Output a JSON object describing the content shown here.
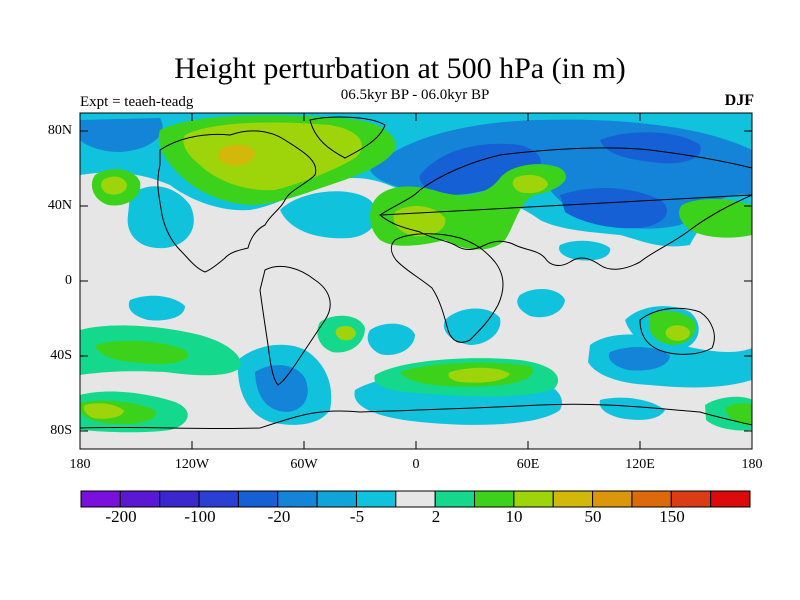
{
  "title": "Height perturbation at 500 hPa (in m)",
  "subtitle": "06.5kyr BP - 06.0kyr BP",
  "experiment": "Expt = teaeh-teadg",
  "season": "DJF",
  "map": {
    "projection": "cylindrical equidistant",
    "lon_range": [
      -180,
      180
    ],
    "lat_range": [
      -90,
      90
    ],
    "lat_ticks": [
      "80N",
      "40N",
      "0",
      "40S",
      "80S"
    ],
    "lon_ticks": [
      "180",
      "120W",
      "60W",
      "0",
      "60E",
      "120E",
      "180"
    ]
  },
  "colorbar": {
    "colors": [
      "#7a10dc",
      "#5a18d2",
      "#3a28cc",
      "#2a40d4",
      "#1660d6",
      "#1484d8",
      "#10a4d8",
      "#10c2dc",
      "#e6e6e6",
      "#14d88c",
      "#3cd21c",
      "#9ed40a",
      "#d2b80a",
      "#dc960a",
      "#dc6a0a",
      "#dc3c14",
      "#dc0a0a"
    ],
    "tick_labels": [
      "-200",
      "-100",
      "-20",
      "-5",
      "2",
      "10",
      "50",
      "150"
    ]
  },
  "fill_legend": {
    "background": "#e6e6e6",
    "light_blue": "#10c2dc",
    "mid_blue": "#1484d8",
    "dark_blue": "#1660d6",
    "teal_green": "#14d88c",
    "green": "#3cd21c",
    "yellow_green": "#9ed40a",
    "gold": "#d2b80a",
    "coast": "#000000"
  }
}
